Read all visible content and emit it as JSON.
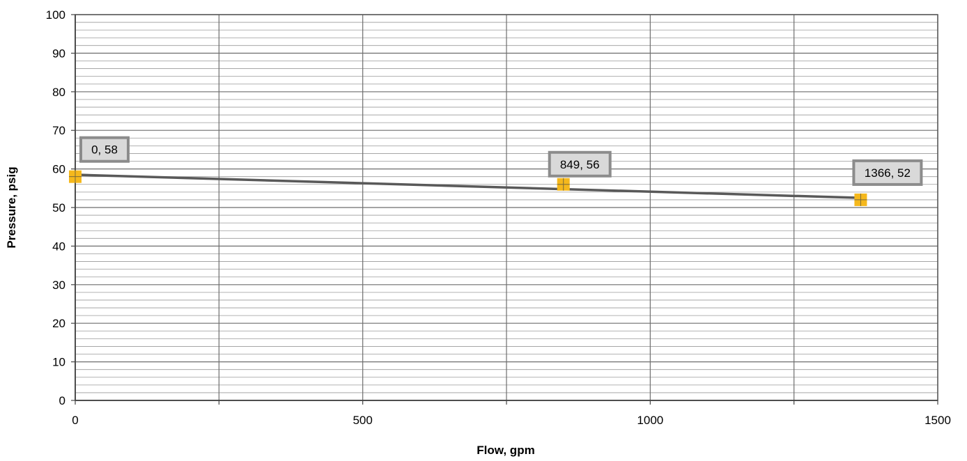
{
  "chart_data": {
    "type": "scatter",
    "xlabel": "Flow, gpm",
    "ylabel": "Pressure, psig",
    "xlim": [
      0,
      1500
    ],
    "ylim": [
      0,
      100
    ],
    "x_major_ticks": [
      0,
      500,
      1000,
      1500
    ],
    "x_tick_labels": [
      "0",
      "500",
      "1000",
      "1500"
    ],
    "x_minor_gridlines": [
      250,
      750,
      1250
    ],
    "y_major_ticks": [
      0,
      10,
      20,
      30,
      40,
      50,
      60,
      70,
      80,
      90,
      100
    ],
    "y_tick_labels": [
      "0",
      "10",
      "20",
      "30",
      "40",
      "50",
      "60",
      "70",
      "80",
      "90",
      "100"
    ],
    "y_minor_step": 2,
    "grid": true,
    "legend": "none",
    "series": [
      {
        "points": [
          {
            "x": 0,
            "y": 58,
            "label": "0, 58"
          },
          {
            "x": 849,
            "y": 56,
            "label": "849, 56"
          },
          {
            "x": 1366,
            "y": 52,
            "label": "1366, 52"
          }
        ],
        "marker": "square",
        "color": "#F5B81C"
      }
    ],
    "trendline": {
      "type": "linear",
      "from": {
        "x": 0,
        "y": 58.5
      },
      "to": {
        "x": 1366,
        "y": 52.5
      },
      "color": "#595959"
    }
  }
}
